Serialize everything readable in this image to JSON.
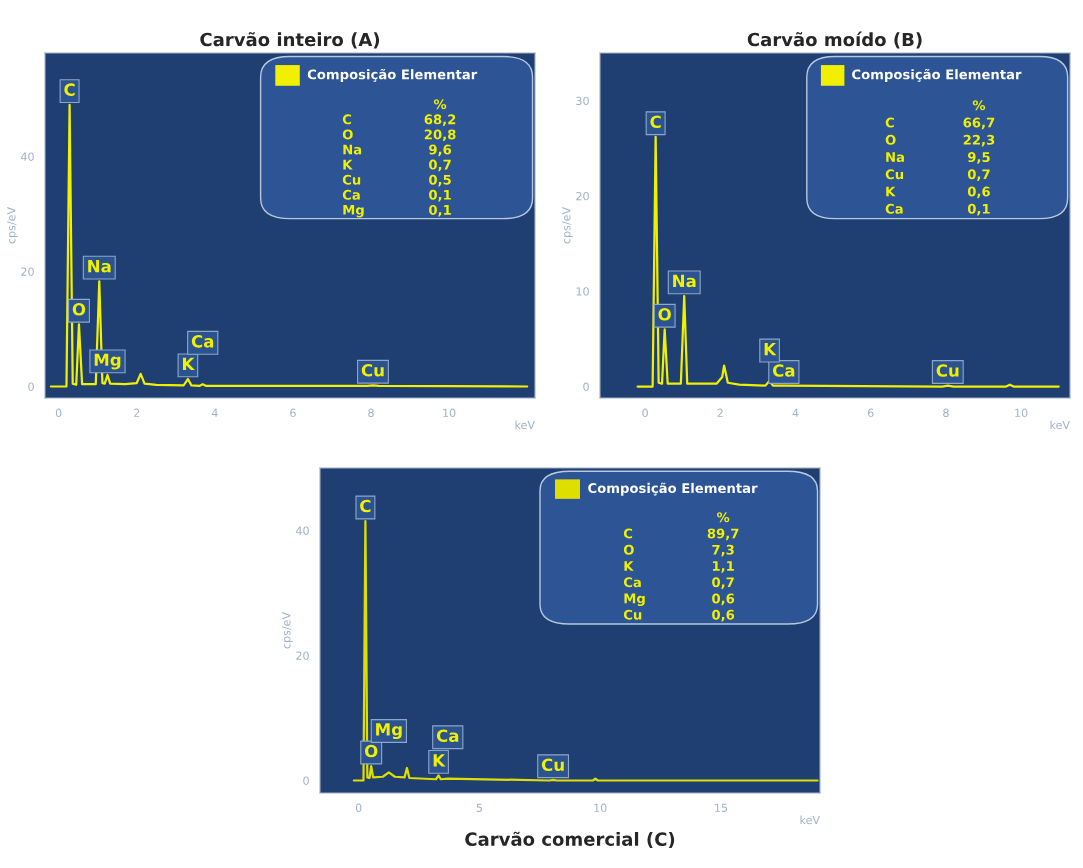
{
  "chart_data": [
    {
      "type": "line",
      "title": "Carvão inteiro (A)",
      "xlabel": "keV",
      "ylabel": "cps/eV",
      "xlim": [
        -0.35,
        12.2
      ],
      "ylim": [
        -2,
        58
      ],
      "xticks": [
        0,
        2,
        4,
        6,
        8,
        10
      ],
      "yticks": [
        0,
        20,
        40
      ],
      "legend": "top right",
      "grid": false,
      "marker": "none",
      "line_style": "solid",
      "series": [
        {
          "name": "Composição Elementar",
          "color": "#f0f000",
          "x": [
            -0.2,
            0.2,
            0.28,
            0.36,
            0.45,
            0.52,
            0.6,
            0.95,
            1.04,
            1.12,
            1.18,
            1.25,
            1.32,
            1.7,
            2.0,
            2.1,
            2.2,
            2.5,
            3.2,
            3.31,
            3.4,
            3.6,
            3.69,
            3.78,
            7.9,
            8.05,
            8.2,
            12.0
          ],
          "values": [
            0,
            0,
            49,
            0.5,
            0.3,
            10.8,
            0.4,
            0.4,
            18.3,
            0.6,
            0.5,
            2,
            0.5,
            0.4,
            0.6,
            2.2,
            0.5,
            0.3,
            0.2,
            1.3,
            0.2,
            0.1,
            0.4,
            0.1,
            0.1,
            0.2,
            0.1,
            0
          ]
        }
      ],
      "annotations": [
        {
          "text": "C",
          "x": 0.28,
          "y": 49
        },
        {
          "text": "Na",
          "x": 1.04,
          "y": 18.3
        },
        {
          "text": "O",
          "x": 0.52,
          "y": 10.8
        },
        {
          "text": "Mg",
          "x": 1.25,
          "y": 2
        },
        {
          "text": "K",
          "x": 3.31,
          "y": 1.3
        },
        {
          "text": "Ca",
          "x": 3.69,
          "y": 0.4
        },
        {
          "text": "Cu",
          "x": 8.05,
          "y": 0.2
        },
        "%",
        "C 68,2",
        "O 20,8",
        "Na 9,6",
        "K 0,7",
        "Cu 0,5",
        "Ca 0,1",
        "Mg 0,1"
      ]
    },
    {
      "type": "line",
      "title": "Carvão moído (B)",
      "xlabel": "keV",
      "ylabel": "cps/eV",
      "xlim": [
        -1.2,
        11.3
      ],
      "ylim": [
        -1.2,
        35
      ],
      "xticks": [
        0,
        2,
        4,
        6,
        8,
        10
      ],
      "yticks": [
        0,
        10,
        20,
        30
      ],
      "legend": "top right",
      "grid": false,
      "marker": "none",
      "line_style": "solid",
      "series": [
        {
          "name": "Composição Elementar",
          "color": "#f0f000",
          "x": [
            -0.2,
            0.2,
            0.28,
            0.36,
            0.45,
            0.52,
            0.6,
            0.95,
            1.04,
            1.12,
            1.9,
            2.05,
            2.1,
            2.2,
            2.5,
            3.2,
            3.31,
            3.4,
            3.69,
            7.9,
            8.05,
            8.2,
            9.6,
            9.7,
            9.8,
            11.0
          ],
          "values": [
            0,
            0,
            26.2,
            0.4,
            0.3,
            6,
            0.3,
            0.3,
            9.5,
            0.3,
            0.3,
            1,
            2.2,
            0.4,
            0.2,
            0.1,
            0.6,
            0.1,
            0.1,
            0,
            0.1,
            0,
            0,
            0.2,
            0,
            0
          ]
        }
      ],
      "annotations": [
        {
          "text": "C",
          "x": 0.28,
          "y": 26.2
        },
        {
          "text": "Na",
          "x": 1.04,
          "y": 9.5
        },
        {
          "text": "O",
          "x": 0.52,
          "y": 6
        },
        {
          "text": "Ca",
          "x": 3.69,
          "y": 0.1
        },
        {
          "text": "K",
          "x": 3.31,
          "y": 0.6
        },
        {
          "text": "Cu",
          "x": 8.05,
          "y": 0.1
        },
        "%",
        "C 66,7",
        "O 22,3",
        "Na 9,5",
        "Cu 0,7",
        "K 0,6",
        "Ca 0,1"
      ]
    },
    {
      "type": "line",
      "title": "Carvão comercial (C)",
      "xlabel": "keV",
      "ylabel": "cps/eV",
      "xlim": [
        -1.6,
        19.1
      ],
      "ylim": [
        -2,
        50
      ],
      "xticks": [
        0,
        5,
        10,
        15
      ],
      "yticks": [
        0,
        20,
        40
      ],
      "legend": "top right",
      "grid": false,
      "marker": "none",
      "line_style": "solid",
      "series": [
        {
          "name": "Composição Elementar",
          "color": "#dede00",
          "x": [
            -0.2,
            0.2,
            0.28,
            0.36,
            0.45,
            0.52,
            0.6,
            1.0,
            1.25,
            1.5,
            1.9,
            2.0,
            2.1,
            3.2,
            3.31,
            3.4,
            3.69,
            7.9,
            8.05,
            8.2,
            9.7,
            9.8,
            9.9,
            19.0
          ],
          "values": [
            0,
            0,
            41.5,
            0.5,
            0.4,
            2.3,
            0.5,
            0.6,
            1.3,
            0.6,
            0.5,
            2,
            0.4,
            0.2,
            0.8,
            0.2,
            0.3,
            0,
            0.1,
            0,
            0,
            0.3,
            0,
            0
          ]
        }
      ],
      "annotations": [
        {
          "text": "C",
          "x": 0.28,
          "y": 41.5
        },
        {
          "text": "O",
          "x": 0.52,
          "y": 2.3
        },
        {
          "text": "K",
          "x": 3.31,
          "y": 0.8
        },
        {
          "text": "Mg",
          "x": 1.25,
          "y": 1.3
        },
        {
          "text": "Ca",
          "x": 3.69,
          "y": 0.3
        },
        {
          "text": "Cu",
          "x": 8.05,
          "y": 0.1
        },
        "%",
        "C 89,7",
        "O 7,3",
        "K 1,1",
        "Ca 0,7",
        "Mg 0,6",
        "Cu 0,6"
      ]
    }
  ]
}
